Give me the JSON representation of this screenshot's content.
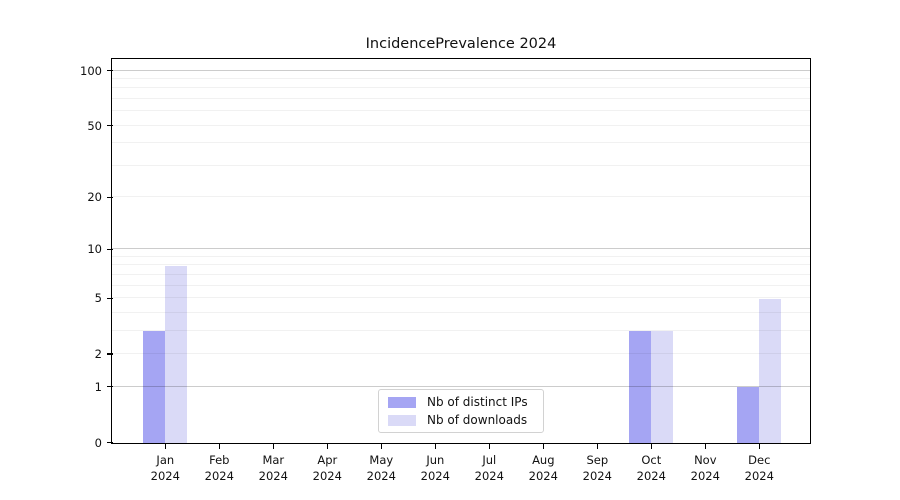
{
  "title": "IncidencePrevalence 2024",
  "chart_data": {
    "type": "bar",
    "title": "IncidencePrevalence 2024",
    "categories": [
      "Jan",
      "Feb",
      "Mar",
      "Apr",
      "May",
      "Jun",
      "Jul",
      "Aug",
      "Sep",
      "Oct",
      "Nov",
      "Dec"
    ],
    "category_year": "2024",
    "series": [
      {
        "name": "Nb of distinct IPs",
        "color": "#a5a5f3",
        "values": [
          3,
          0,
          0,
          0,
          0,
          0,
          0,
          0,
          0,
          3,
          0,
          1
        ]
      },
      {
        "name": "Nb of downloads",
        "color": "#dadaf7",
        "values": [
          8,
          0,
          0,
          0,
          0,
          0,
          0,
          0,
          0,
          3,
          0,
          5
        ]
      }
    ],
    "xlabel": "",
    "ylabel": "",
    "y_axis": {
      "scale": "log1p",
      "ticks": [
        0,
        1,
        2,
        5,
        10,
        20,
        50,
        100
      ],
      "major_gridlines": [
        1,
        10,
        100
      ],
      "minor_gridlines": [
        2,
        3,
        4,
        5,
        6,
        7,
        8,
        9,
        20,
        30,
        40,
        50,
        60,
        70,
        80,
        90
      ],
      "min": 0,
      "max": 115
    },
    "grid": true,
    "legend_position": "bottom-center-inside"
  },
  "legend": {
    "items": [
      {
        "label": "Nb of distinct IPs",
        "color": "#a5a5f3"
      },
      {
        "label": "Nb of downloads",
        "color": "#dadaf7"
      }
    ]
  }
}
